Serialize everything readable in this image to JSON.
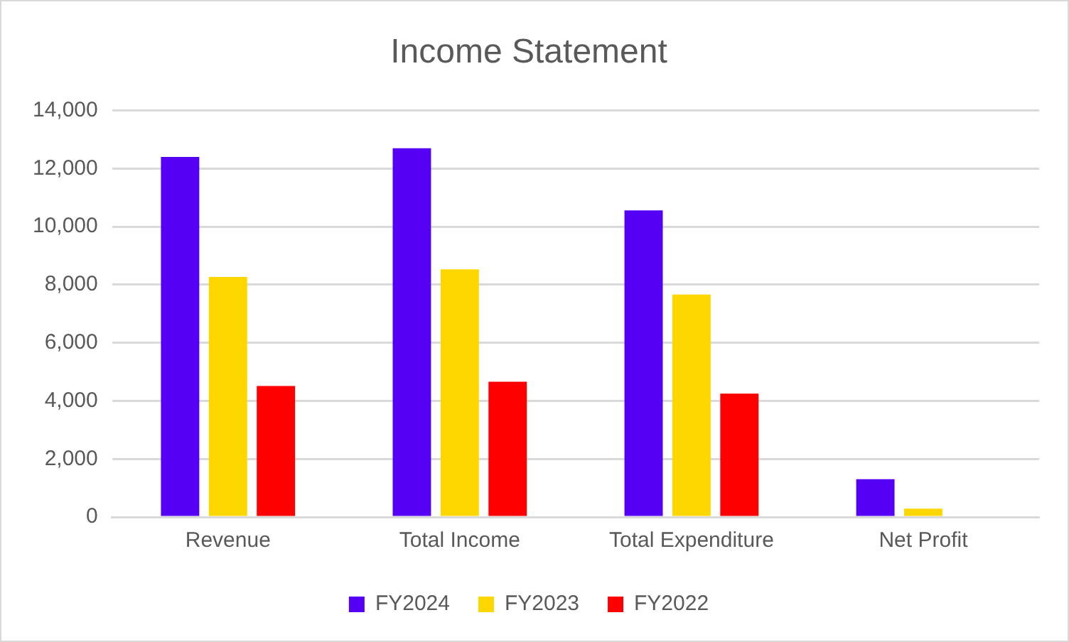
{
  "chart_data": {
    "type": "bar",
    "title": "Income Statement",
    "categories": [
      "Revenue",
      "Total Income",
      "Total Expenditure",
      "Net Profit"
    ],
    "series": [
      {
        "name": "FY2024",
        "color": "#5500f5",
        "values": [
          12400,
          12700,
          10560,
          1300
        ]
      },
      {
        "name": "FY2023",
        "color": "#ffd700",
        "values": [
          8270,
          8530,
          7660,
          290
        ]
      },
      {
        "name": "FY2022",
        "color": "#ff0000",
        "values": [
          4510,
          4660,
          4250,
          0
        ]
      }
    ],
    "ylim": [
      0,
      14000
    ],
    "yticks": [
      {
        "value": 0,
        "label": "0"
      },
      {
        "value": 2000,
        "label": "2,000"
      },
      {
        "value": 4000,
        "label": "4,000"
      },
      {
        "value": 6000,
        "label": "6,000"
      },
      {
        "value": 8000,
        "label": "8,000"
      },
      {
        "value": 10000,
        "label": "10,000"
      },
      {
        "value": 12000,
        "label": "12,000"
      },
      {
        "value": 14000,
        "label": "14,000"
      }
    ],
    "grid": "y",
    "legend": "bottom"
  }
}
